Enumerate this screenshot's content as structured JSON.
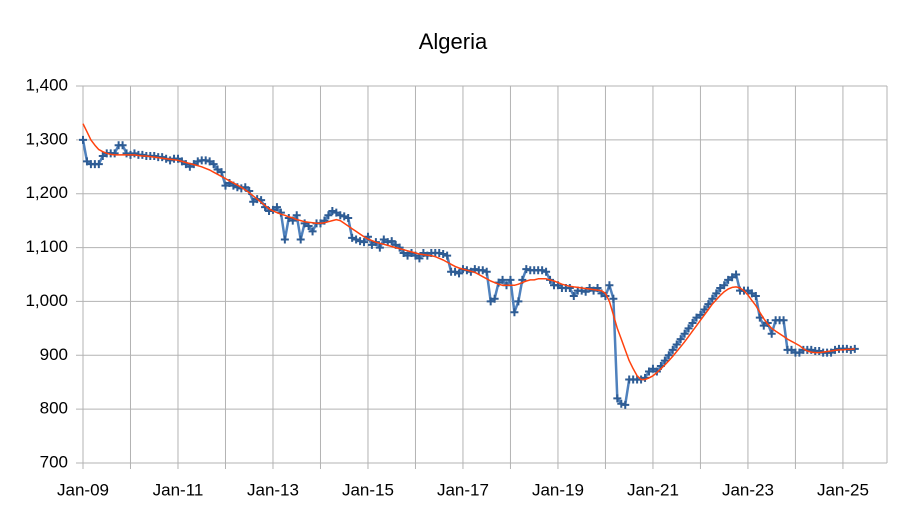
{
  "chart_data": {
    "type": "line",
    "title": "Algeria",
    "categories": [
      "Jan-09",
      null,
      null,
      null,
      null,
      null,
      null,
      null,
      null,
      null,
      null,
      null,
      null,
      null,
      null,
      null,
      null,
      null,
      null,
      null,
      null,
      null,
      null,
      null,
      "Jan-11",
      null,
      null,
      null,
      null,
      null,
      null,
      null,
      null,
      null,
      null,
      null,
      null,
      null,
      null,
      null,
      null,
      null,
      null,
      null,
      null,
      null,
      null,
      null,
      "Jan-13",
      null,
      null,
      null,
      null,
      null,
      null,
      null,
      null,
      null,
      null,
      null,
      null,
      null,
      null,
      null,
      null,
      null,
      null,
      null,
      null,
      null,
      null,
      null,
      "Jan-15",
      null,
      null,
      null,
      null,
      null,
      null,
      null,
      null,
      null,
      null,
      null,
      null,
      null,
      null,
      null,
      null,
      null,
      null,
      null,
      null,
      null,
      null,
      null,
      "Jan-17",
      null,
      null,
      null,
      null,
      null,
      null,
      null,
      null,
      null,
      null,
      null,
      null,
      null,
      null,
      null,
      null,
      null,
      null,
      null,
      null,
      null,
      null,
      null,
      "Jan-19",
      null,
      null,
      null,
      null,
      null,
      null,
      null,
      null,
      null,
      null,
      null,
      null,
      null,
      null,
      null,
      null,
      null,
      null,
      null,
      null,
      null,
      null,
      null,
      "Jan-21",
      null,
      null,
      null,
      null,
      null,
      null,
      null,
      null,
      null,
      null,
      null,
      null,
      null,
      null,
      null,
      null,
      null,
      null,
      null,
      null,
      null,
      null,
      null,
      "Jan-23",
      null,
      null,
      null,
      null,
      null,
      null,
      null,
      null,
      null,
      null,
      null,
      null,
      null,
      null,
      null,
      null,
      null,
      null,
      null,
      null,
      null,
      null,
      null,
      "Jan-25",
      null,
      null,
      null
    ],
    "series": [
      {
        "color": "#4f81bd",
        "marker": "#2e5c94",
        "values": [
          1300,
          1260,
          1255,
          1255,
          1255,
          1270,
          1275,
          1275,
          1275,
          1290,
          1290,
          1275,
          1272,
          1275,
          1272,
          1272,
          1270,
          1270,
          1270,
          1268,
          1268,
          1265,
          1262,
          1265,
          1265,
          1260,
          1255,
          1250,
          1255,
          1260,
          1262,
          1262,
          1260,
          1255,
          1245,
          1240,
          1215,
          1220,
          1215,
          1212,
          1210,
          1212,
          1205,
          1185,
          1190,
          1188,
          1175,
          1168,
          1170,
          1175,
          1165,
          1115,
          1155,
          1150,
          1160,
          1115,
          1145,
          1140,
          1130,
          1145,
          1145,
          1150,
          1160,
          1168,
          1165,
          1160,
          1158,
          1155,
          1118,
          1115,
          1112,
          1110,
          1120,
          1105,
          1110,
          1100,
          1115,
          1110,
          1112,
          1105,
          1100,
          1090,
          1085,
          1090,
          1085,
          1080,
          1090,
          1085,
          1090,
          1090,
          1090,
          1088,
          1085,
          1055,
          1055,
          1052,
          1060,
          1058,
          1055,
          1060,
          1058,
          1058,
          1055,
          1000,
          1005,
          1035,
          1040,
          1030,
          1040,
          980,
          1000,
          1040,
          1060,
          1058,
          1058,
          1058,
          1058,
          1055,
          1040,
          1030,
          1030,
          1025,
          1025,
          1025,
          1010,
          1020,
          1020,
          1018,
          1025,
          1020,
          1025,
          1015,
          1010,
          1030,
          1005,
          820,
          810,
          808,
          855,
          855,
          855,
          855,
          858,
          870,
          875,
          870,
          880,
          890,
          900,
          910,
          920,
          930,
          940,
          950,
          960,
          970,
          975,
          985,
          995,
          1005,
          1015,
          1025,
          1030,
          1040,
          1045,
          1050,
          1020,
          1020,
          1020,
          1015,
          1010,
          970,
          955,
          960,
          940,
          965,
          965,
          965,
          910,
          910,
          905,
          905,
          910,
          910,
          910,
          908,
          908,
          905,
          905,
          905,
          910,
          912,
          912,
          912,
          910,
          912
        ]
      },
      {
        "color": "#ff420e",
        "values": [
          1330,
          1315,
          1300,
          1290,
          1282,
          1278,
          1275,
          1273,
          1272,
          1272,
          1272,
          1272,
          1272,
          1272,
          1271,
          1270,
          1270,
          1269,
          1268,
          1267,
          1266,
          1265,
          1264,
          1263,
          1262,
          1260,
          1258,
          1256,
          1254,
          1252,
          1250,
          1247,
          1244,
          1240,
          1236,
          1232,
          1228,
          1224,
          1220,
          1216,
          1212,
          1207,
          1202,
          1196,
          1190,
          1184,
          1178,
          1172,
          1168,
          1165,
          1162,
          1160,
          1157,
          1155,
          1152,
          1150,
          1148,
          1147,
          1146,
          1145,
          1145,
          1146,
          1148,
          1150,
          1152,
          1150,
          1145,
          1140,
          1135,
          1130,
          1125,
          1120,
          1116,
          1113,
          1110,
          1108,
          1106,
          1104,
          1102,
          1100,
          1098,
          1096,
          1094,
          1092,
          1090,
          1088,
          1087,
          1086,
          1085,
          1083,
          1080,
          1077,
          1073,
          1069,
          1065,
          1062,
          1060,
          1058,
          1056,
          1054,
          1050,
          1046,
          1042,
          1038,
          1035,
          1032,
          1030,
          1030,
          1030,
          1030,
          1032,
          1035,
          1038,
          1040,
          1040,
          1042,
          1042,
          1042,
          1040,
          1038,
          1035,
          1032,
          1030,
          1028,
          1027,
          1026,
          1025,
          1024,
          1023,
          1022,
          1021,
          1020,
          1015,
          1000,
          975,
          950,
          930,
          910,
          890,
          875,
          862,
          855,
          855,
          858,
          862,
          868,
          875,
          882,
          890,
          898,
          907,
          916,
          925,
          935,
          945,
          955,
          965,
          975,
          985,
          995,
          1003,
          1011,
          1018,
          1023,
          1026,
          1027,
          1025,
          1020,
          1012,
          1002,
          992,
          980,
          968,
          958,
          950,
          945,
          940,
          935,
          930,
          926,
          922,
          918,
          912,
          908,
          906,
          905,
          905,
          906,
          907,
          908,
          909,
          910,
          910,
          911,
          911,
          912
        ]
      }
    ],
    "ylim": [
      700,
      1400
    ],
    "yticks": [
      {
        "value": 700,
        "label": "700"
      },
      {
        "value": 800,
        "label": "800"
      },
      {
        "value": 900,
        "label": "900"
      },
      {
        "value": 1000,
        "label": "1,000"
      },
      {
        "value": 1100,
        "label": "1,100"
      },
      {
        "value": 1200,
        "label": "1,200"
      },
      {
        "value": 1300,
        "label": "1,300"
      },
      {
        "value": 1400,
        "label": "1,400"
      }
    ],
    "grid": true
  }
}
